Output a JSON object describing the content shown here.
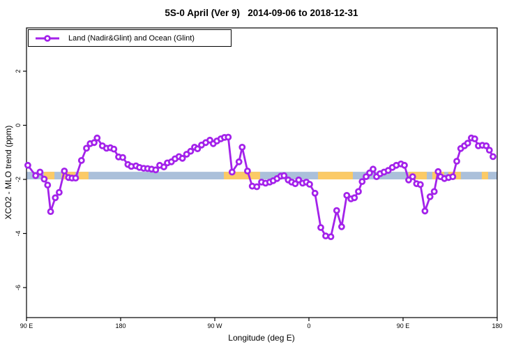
{
  "title": "5S-0 April (Ver 9)   2014-09-06 to 2018-12-31",
  "legend": {
    "label": "Land (Nadir&Glint) and Ocean (Glint)"
  },
  "axes": {
    "xlabel": "Longitude (deg E)",
    "ylabel": "XCO2 - MLO trend (ppm)"
  },
  "colors": {
    "series": "#a322ea",
    "marker_fill": "#ffffff",
    "band_base": "#abc0da",
    "band_highlight": "#fbca66",
    "axis": "#000000"
  },
  "chart_data": {
    "type": "line",
    "title": "5S-0 April (Ver 9)   2014-09-06 to 2018-12-31",
    "xlabel": "Longitude (deg E)",
    "ylabel": "XCO2 - MLO trend (ppm)",
    "xlim": [
      90,
      540
    ],
    "ylim": [
      -7.11,
      3.6
    ],
    "grid": false,
    "legend_position": "top-left",
    "x_ticks": [
      {
        "deg": 90,
        "label": "90 E"
      },
      {
        "deg": 180,
        "label": "180"
      },
      {
        "deg": 270,
        "label": "90 W"
      },
      {
        "deg": 360,
        "label": "0"
      },
      {
        "deg": 450,
        "label": "90 E"
      },
      {
        "deg": 540,
        "label": "180"
      }
    ],
    "y_ticks": [
      {
        "value": 2,
        "label": "2"
      },
      {
        "value": 0,
        "label": "0"
      },
      {
        "value": -2,
        "label": "-2"
      },
      {
        "value": -4,
        "label": "-4"
      },
      {
        "value": -6,
        "label": "-6"
      }
    ],
    "band": {
      "description": "horizontal reference band",
      "range_ppm": [
        -2.0,
        -1.72
      ],
      "base_color": "#abc0da",
      "highlight_color": "#fbca66",
      "highlight_segments_lon": [
        [
          106.7,
          116.7
        ],
        [
          123.3,
          136.7
        ],
        [
          140.0,
          149.3
        ],
        [
          278.7,
          313.3
        ],
        [
          368.7,
          402.0
        ],
        [
          455.3,
          472.7
        ],
        [
          478.0,
          489.3
        ],
        [
          493.3,
          505.3
        ],
        [
          525.3,
          531.3
        ]
      ]
    },
    "series": [
      {
        "name": "Land (Nadir&Glint) and Ocean (Glint)",
        "color": "#a322ea",
        "marker": "open-circle",
        "points": [
          [
            91.3,
            -1.48
          ],
          [
            98.7,
            -1.86
          ],
          [
            102.9,
            -1.73
          ],
          [
            106.9,
            -1.99
          ],
          [
            110.2,
            -2.21
          ],
          [
            113.1,
            -3.19
          ],
          [
            117.5,
            -2.68
          ],
          [
            121.3,
            -2.48
          ],
          [
            126.2,
            -1.69
          ],
          [
            130.2,
            -1.93
          ],
          [
            133.5,
            -1.95
          ],
          [
            136.9,
            -1.95
          ],
          [
            142.5,
            -1.3
          ],
          [
            147.3,
            -0.85
          ],
          [
            150.9,
            -0.68
          ],
          [
            154.7,
            -0.64
          ],
          [
            157.5,
            -0.47
          ],
          [
            162.5,
            -0.76
          ],
          [
            166.5,
            -0.85
          ],
          [
            170.2,
            -0.83
          ],
          [
            173.5,
            -0.88
          ],
          [
            178.0,
            -1.17
          ],
          [
            182.0,
            -1.19
          ],
          [
            186.9,
            -1.45
          ],
          [
            190.2,
            -1.52
          ],
          [
            194.7,
            -1.5
          ],
          [
            198.0,
            -1.56
          ],
          [
            202.0,
            -1.59
          ],
          [
            205.8,
            -1.6
          ],
          [
            209.5,
            -1.62
          ],
          [
            213.5,
            -1.65
          ],
          [
            217.3,
            -1.48
          ],
          [
            221.3,
            -1.54
          ],
          [
            224.7,
            -1.39
          ],
          [
            228.5,
            -1.35
          ],
          [
            232.0,
            -1.24
          ],
          [
            235.8,
            -1.16
          ],
          [
            239.1,
            -1.22
          ],
          [
            243.1,
            -1.07
          ],
          [
            246.9,
            -0.96
          ],
          [
            250.7,
            -0.81
          ],
          [
            253.5,
            -0.87
          ],
          [
            257.3,
            -0.73
          ],
          [
            261.3,
            -0.64
          ],
          [
            265.3,
            -0.55
          ],
          [
            268.5,
            -0.68
          ],
          [
            272.0,
            -0.58
          ],
          [
            275.8,
            -0.5
          ],
          [
            279.3,
            -0.45
          ],
          [
            282.9,
            -0.44
          ],
          [
            286.5,
            -1.73
          ],
          [
            293.1,
            -1.35
          ],
          [
            296.2,
            -0.81
          ],
          [
            301.3,
            -1.69
          ],
          [
            305.8,
            -2.25
          ],
          [
            310.2,
            -2.27
          ],
          [
            314.7,
            -2.1
          ],
          [
            318.5,
            -2.14
          ],
          [
            322.5,
            -2.1
          ],
          [
            325.8,
            -2.05
          ],
          [
            329.5,
            -1.97
          ],
          [
            333.1,
            -1.88
          ],
          [
            336.2,
            -1.86
          ],
          [
            340.2,
            -2.02
          ],
          [
            343.5,
            -2.1
          ],
          [
            346.9,
            -2.16
          ],
          [
            350.2,
            -2.02
          ],
          [
            354.0,
            -2.14
          ],
          [
            357.5,
            -2.1
          ],
          [
            360.7,
            -2.18
          ],
          [
            365.8,
            -2.51
          ],
          [
            371.3,
            -3.78
          ],
          [
            376.0,
            -4.09
          ],
          [
            381.0,
            -4.12
          ],
          [
            386.5,
            -3.15
          ],
          [
            391.3,
            -3.75
          ],
          [
            396.2,
            -2.59
          ],
          [
            400.2,
            -2.72
          ],
          [
            403.5,
            -2.68
          ],
          [
            407.3,
            -2.45
          ],
          [
            410.9,
            -2.08
          ],
          [
            414.7,
            -1.9
          ],
          [
            418.0,
            -1.76
          ],
          [
            421.3,
            -1.62
          ],
          [
            424.7,
            -1.9
          ],
          [
            428.0,
            -1.79
          ],
          [
            431.8,
            -1.73
          ],
          [
            435.8,
            -1.67
          ],
          [
            439.8,
            -1.56
          ],
          [
            443.5,
            -1.48
          ],
          [
            448.0,
            -1.43
          ],
          [
            451.3,
            -1.48
          ],
          [
            455.3,
            -2.02
          ],
          [
            459.1,
            -1.9
          ],
          [
            462.9,
            -2.16
          ],
          [
            466.5,
            -2.19
          ],
          [
            470.9,
            -3.17
          ],
          [
            475.8,
            -2.64
          ],
          [
            479.8,
            -2.45
          ],
          [
            483.5,
            -1.71
          ],
          [
            485.8,
            -1.9
          ],
          [
            489.5,
            -1.97
          ],
          [
            493.5,
            -1.93
          ],
          [
            497.5,
            -1.9
          ],
          [
            501.3,
            -1.33
          ],
          [
            505.1,
            -0.86
          ],
          [
            508.7,
            -0.76
          ],
          [
            511.8,
            -0.66
          ],
          [
            515.3,
            -0.47
          ],
          [
            518.5,
            -0.5
          ],
          [
            522.0,
            -0.76
          ],
          [
            525.8,
            -0.74
          ],
          [
            529.5,
            -0.76
          ],
          [
            532.5,
            -0.92
          ],
          [
            536.0,
            -1.16
          ]
        ]
      }
    ]
  }
}
